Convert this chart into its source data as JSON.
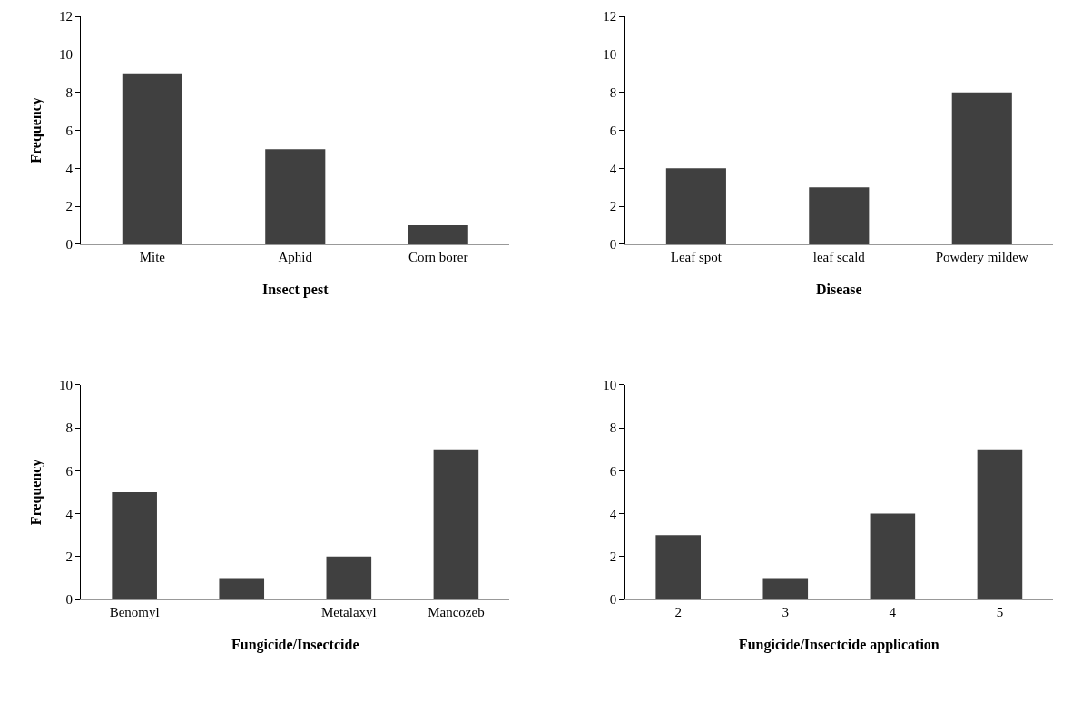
{
  "chart_data": [
    {
      "type": "bar",
      "xlabel": "Insect pest",
      "ylabel": "Frequency",
      "categories": [
        "Mite",
        "Aphid",
        "Corn borer"
      ],
      "values": [
        9,
        5,
        1
      ],
      "color": "#404040",
      "ylim": [
        0,
        12
      ],
      "yticks": [
        0,
        2,
        4,
        6,
        8,
        10,
        12
      ]
    },
    {
      "type": "bar",
      "xlabel": "Disease",
      "categories": [
        "Leaf spot",
        "leaf scald",
        "Powdery mildew"
      ],
      "values": [
        4,
        3,
        8
      ],
      "color": "#404040",
      "ylim": [
        0,
        12
      ],
      "yticks": [
        0,
        2,
        4,
        6,
        8,
        10,
        12
      ]
    },
    {
      "type": "bar",
      "xlabel": "Fungicide/Insectcide",
      "ylabel": "Frequency",
      "categories": [
        "Benomyl",
        null,
        "Metalaxyl",
        "Mancozeb"
      ],
      "values": [
        5,
        1,
        2,
        7
      ],
      "color": "#404040",
      "ylim": [
        0,
        10
      ],
      "yticks": [
        0,
        2,
        4,
        6,
        8,
        10
      ]
    },
    {
      "type": "bar",
      "xlabel": "Fungicide/Insectcide application",
      "categories": [
        "2",
        "3",
        "4",
        "5"
      ],
      "values": [
        3,
        1,
        4,
        7
      ],
      "color": "#404040",
      "ylim": [
        0,
        10
      ],
      "yticks": [
        0,
        2,
        4,
        6,
        8,
        10
      ]
    }
  ]
}
